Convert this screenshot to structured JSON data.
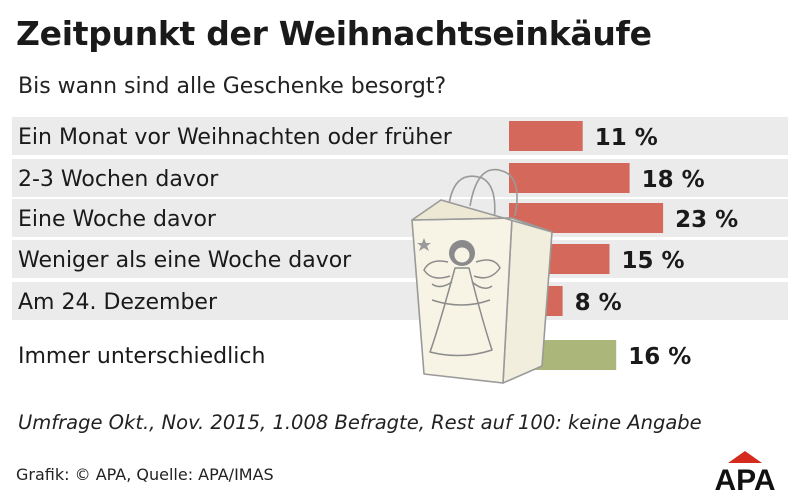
{
  "chart_data": {
    "type": "bar",
    "orientation": "horizontal",
    "title": "Zeitpunkt der Weihnachtseinkäufe",
    "subtitle": "Bis wann sind alle Geschenke besorgt?",
    "categories": [
      "Ein Monat vor Weihnachten oder früher",
      "2-3 Wochen davor",
      "Eine Woche davor",
      "Weniger als eine Woche davor",
      "Am 24. Dezember",
      "Immer unterschiedlich"
    ],
    "values": [
      11,
      18,
      23,
      15,
      8,
      16
    ],
    "value_labels": [
      "11 %",
      "18 %",
      "23 %",
      "15 %",
      "8 %",
      "16 %"
    ],
    "unit": "%",
    "bar_colors": [
      "#d4685a",
      "#d4685a",
      "#d4685a",
      "#d4685a",
      "#d4685a",
      "#aab67a"
    ],
    "row_background": "#ebebeb",
    "grid": false,
    "legend": "none"
  },
  "note": "Umfrage Okt., Nov. 2015, 1.008 Befragte, Rest auf 100: keine Angabe",
  "credit": "Grafik: © APA, Quelle: APA/IMAS",
  "logo": {
    "text": "APA",
    "accent_color": "#d52b1e"
  },
  "illustration": {
    "icon": "shopping-bag-angel-icon"
  }
}
